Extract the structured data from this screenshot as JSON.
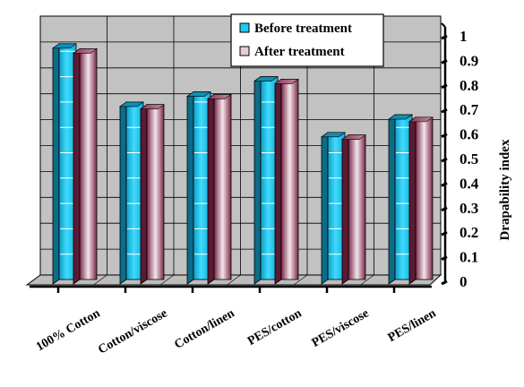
{
  "chart_data": {
    "type": "bar",
    "title": "",
    "xlabel": "",
    "ylabel": "Drapability index",
    "categories": [
      "100% Cotton",
      "Cotton/viscose",
      "Cotton/linen",
      "PES/cotton",
      "PES/viscose",
      "PES/linen"
    ],
    "series": [
      {
        "name": "Before treatment",
        "values": [
          0.93,
          0.7,
          0.74,
          0.8,
          0.58,
          0.65
        ]
      },
      {
        "name": "After treatment",
        "values": [
          0.91,
          0.69,
          0.73,
          0.79,
          0.57,
          0.64
        ]
      }
    ],
    "ylim": [
      0,
      1
    ],
    "yticks": [
      "0",
      "0.1",
      "0.2",
      "0.3",
      "0.4",
      "0.5",
      "0.6",
      "0.7",
      "0.8",
      "0.9",
      "1"
    ],
    "grid": true,
    "legend_position": "top-right",
    "colors": {
      "before": "#1fc8f0",
      "before_dark": "#0c6d86",
      "after": "#7a2848",
      "after_light": "#f4e6ec",
      "wall": "#c2c2c2",
      "floor": "#bdbdbd"
    }
  }
}
